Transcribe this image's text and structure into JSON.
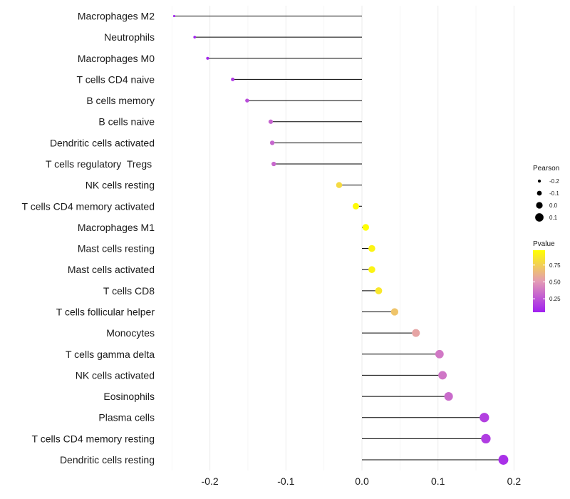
{
  "chart_data": {
    "type": "lollipop",
    "title": "",
    "xlabel": "",
    "ylabel": "",
    "xlim": [
      -0.25,
      0.2
    ],
    "xticks": [
      -0.2,
      -0.1,
      0.0,
      0.1,
      0.2
    ],
    "xtick_labels": [
      "-0.2",
      "-0.1",
      "0.0",
      "0.1",
      "0.2"
    ],
    "grid": true,
    "colors": {
      "low": "#a020f0",
      "mid": "#e49bb4",
      "high": "#ffff00",
      "stem": "#000000",
      "grid": "#ebebeb"
    },
    "points": [
      {
        "category": "Macrophages M2",
        "pearson": -0.247,
        "pvalue": 0.05
      },
      {
        "category": "Neutrophils",
        "pearson": -0.22,
        "pvalue": 0.06
      },
      {
        "category": "Macrophages M0",
        "pearson": -0.203,
        "pvalue": 0.08
      },
      {
        "category": "T cells CD4 naive",
        "pearson": -0.17,
        "pvalue": 0.15
      },
      {
        "category": "B cells memory",
        "pearson": -0.151,
        "pvalue": 0.22
      },
      {
        "category": "B cells naive",
        "pearson": -0.12,
        "pvalue": 0.3
      },
      {
        "category": "Dendritic cells activated",
        "pearson": -0.118,
        "pvalue": 0.31
      },
      {
        "category": "T cells regulatory  Tregs ",
        "pearson": -0.116,
        "pvalue": 0.32
      },
      {
        "category": "NK cells resting",
        "pearson": -0.03,
        "pvalue": 0.8
      },
      {
        "category": "T cells CD4 memory activated",
        "pearson": -0.008,
        "pvalue": 0.95
      },
      {
        "category": "Macrophages M1",
        "pearson": 0.005,
        "pvalue": 0.97
      },
      {
        "category": "Mast cells resting",
        "pearson": 0.013,
        "pvalue": 0.92
      },
      {
        "category": "Mast cells activated",
        "pearson": 0.013,
        "pvalue": 0.92
      },
      {
        "category": "T cells CD8",
        "pearson": 0.022,
        "pvalue": 0.86
      },
      {
        "category": "T cells follicular helper",
        "pearson": 0.043,
        "pvalue": 0.7
      },
      {
        "category": "Monocytes",
        "pearson": 0.071,
        "pvalue": 0.55
      },
      {
        "category": "T cells gamma delta",
        "pearson": 0.102,
        "pvalue": 0.38
      },
      {
        "category": "NK cells activated",
        "pearson": 0.106,
        "pvalue": 0.37
      },
      {
        "category": "Eosinophils",
        "pearson": 0.114,
        "pvalue": 0.33
      },
      {
        "category": "Plasma cells",
        "pearson": 0.161,
        "pvalue": 0.17
      },
      {
        "category": "T cells CD4 memory resting",
        "pearson": 0.163,
        "pvalue": 0.16
      },
      {
        "category": "Dendritic cells resting",
        "pearson": 0.186,
        "pvalue": 0.11
      }
    ],
    "legend_size": {
      "title": "Pearson",
      "placement": "right",
      "entries": [
        {
          "label": "-0.2",
          "value": -0.2
        },
        {
          "label": "-0.1",
          "value": -0.1
        },
        {
          "label": "0.0",
          "value": 0.0
        },
        {
          "label": "0.1",
          "value": 0.1
        }
      ]
    },
    "legend_color": {
      "title": "Pvalue",
      "placement": "right",
      "range": [
        0.05,
        0.97
      ],
      "ticks": [
        {
          "label": "0.75",
          "value": 0.75
        },
        {
          "label": "0.50",
          "value": 0.5
        },
        {
          "label": "0.25",
          "value": 0.25
        }
      ]
    }
  }
}
